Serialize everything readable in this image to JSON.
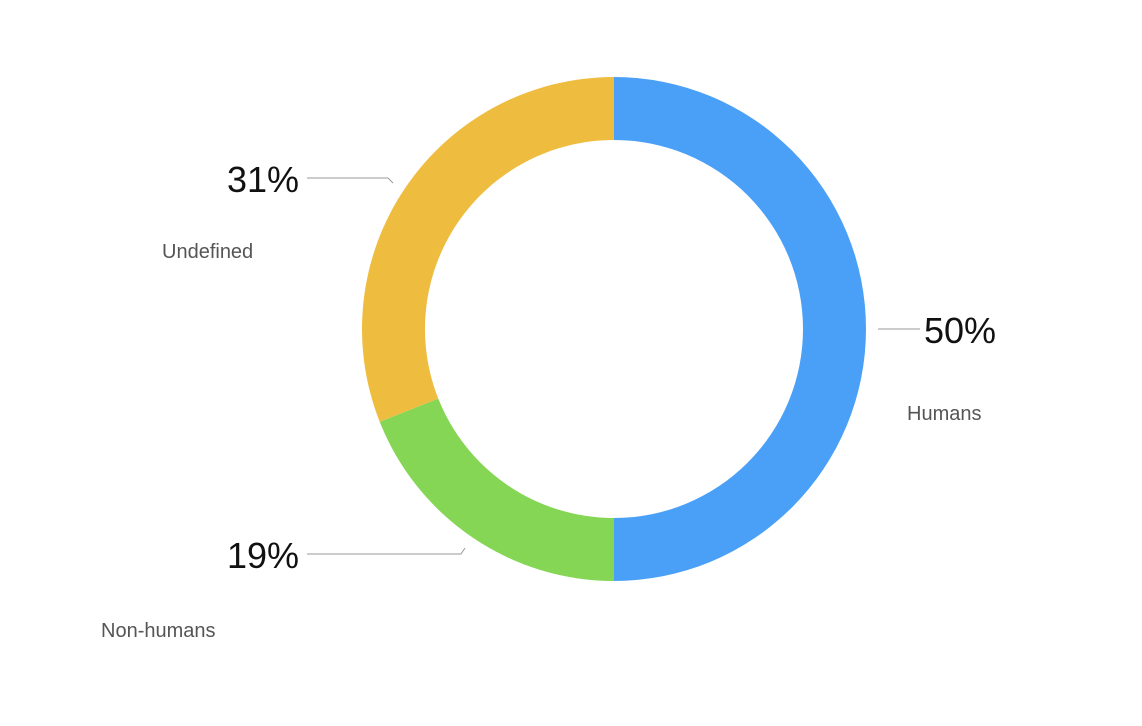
{
  "chart_data": {
    "type": "pie",
    "donut": true,
    "start": "top",
    "direction": "clockwise",
    "legend": "none",
    "slices": [
      {
        "label": "Humans",
        "value": 50,
        "value_label": "50%",
        "color": "#4aa0f7"
      },
      {
        "label": "Non-humans",
        "value": 19,
        "value_label": "19%",
        "color": "#84d654"
      },
      {
        "label": "Undefined",
        "value": 31,
        "value_label": "31%",
        "color": "#eebd40"
      }
    ]
  }
}
